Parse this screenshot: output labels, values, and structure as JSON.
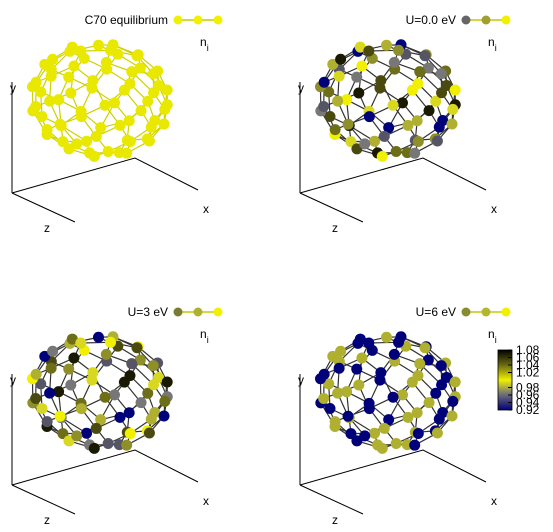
{
  "panels": [
    {
      "legend": "C70  equilibrium",
      "symbol": "n",
      "subscript": "i",
      "x_label": "x",
      "y_label": "y",
      "z_label": "z"
    },
    {
      "legend": "U=0.0 eV",
      "symbol": "n",
      "subscript": "i",
      "x_label": "x",
      "y_label": "y",
      "z_label": "z"
    },
    {
      "legend": "U=3 eV",
      "symbol": "n",
      "subscript": "i",
      "x_label": "x",
      "y_label": "y",
      "z_label": "z"
    },
    {
      "legend": "U=6 eV",
      "symbol": "n",
      "subscript": "i",
      "x_label": "x",
      "y_label": "y",
      "z_label": "z"
    }
  ],
  "colorbar": {
    "lim": [
      0.92,
      1.08
    ],
    "ticks": [
      1.08,
      1.06,
      1.04,
      1.02,
      0.98,
      0.96,
      0.94,
      0.92
    ]
  }
}
